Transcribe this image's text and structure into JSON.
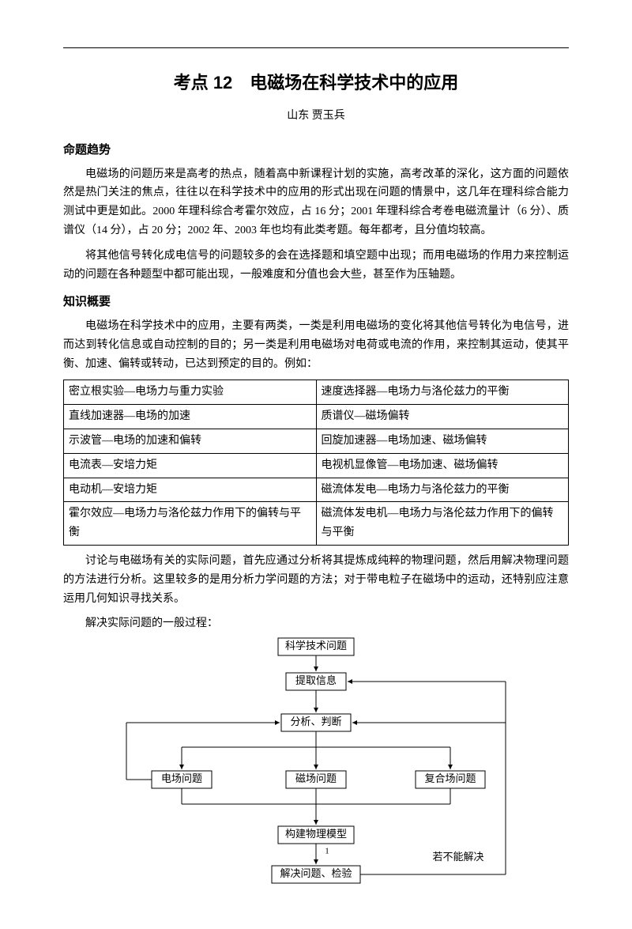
{
  "title": "考点 12　电磁场在科学技术中的应用",
  "author": "山东  贾玉兵",
  "sec1_heading": "命题趋势",
  "sec1_p1": "电磁场的问题历来是高考的热点，随着高中新课程计划的实施，高考改革的深化，这方面的问题依然是热门关注的焦点，往往以在科学技术中的应用的形式出现在问题的情景中，这几年在理科综合能力测试中更是如此。2000 年理科综合考霍尔效应，占 16 分；2001 年理科综合考卷电磁流量计（6 分）、质谱仪（14 分），占 20 分；2002 年、2003 年也均有此类考题。每年都考，且分值均较高。",
  "sec1_p2": "将其他信号转化成电信号的问题较多的会在选择题和填空题中出现；而用电磁场的作用力来控制运动的问题在各种题型中都可能出现，一般难度和分值也会大些，甚至作为压轴题。",
  "sec2_heading": "知识概要",
  "sec2_p1": "电磁场在科学技术中的应用，主要有两类，一类是利用电磁场的变化将其他信号转化为电信号，进而达到转化信息或自动控制的目的；另一类是利用电磁场对电荷或电流的作用，来控制其运动，使其平衡、加速、偏转或转动，已达到预定的目的。例如：",
  "table": {
    "rows": [
      [
        "密立根实验—电场力与重力实验",
        "速度选择器—电场力与洛伦兹力的平衡"
      ],
      [
        "直线加速器—电场的加速",
        "质谱仪—磁场偏转"
      ],
      [
        "示波管—电场的加速和偏转",
        "回旋加速器—电场加速、磁场偏转"
      ],
      [
        "电流表—安培力矩",
        "电视机显像管—电场加速、磁场偏转"
      ],
      [
        "电动机—安培力矩",
        "磁流体发电—电场力与洛伦兹力的平衡"
      ],
      [
        "霍尔效应—电场力与洛伦兹力作用下的偏转与平衡",
        "磁流体发电机—电场力与洛伦兹力作用下的偏转与平衡"
      ]
    ]
  },
  "sec2_p2": "讨论与电磁场有关的实际问题，首先应通过分析将其提炼成纯粹的物理问题，然后用解决物理问题的方法进行分析。这里较多的是用分析力学问题的方法；对于带电粒子在磁场中的运动，还特别应注意运用几何知识寻找关系。",
  "sec2_p3": "解决实际问题的一般过程：",
  "flow": {
    "n1": "科学技术问题",
    "n2": "提取信息",
    "n3": "分析、判断",
    "b1": "电场问题",
    "b2": "磁场问题",
    "b3": "复合场问题",
    "n4": "构建物理模型",
    "n5": "解决问题、检验",
    "note": "若不能解决",
    "one": "1"
  }
}
